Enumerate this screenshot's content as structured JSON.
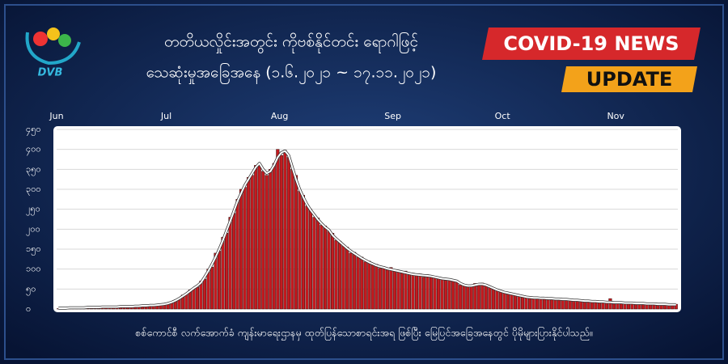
{
  "branding": {
    "logo": "DVB",
    "badge": [
      "COVID-19 NEWS",
      "UPDATE"
    ]
  },
  "chart_data": {
    "type": "bar",
    "title": "တတိယလှိုင်းအတွင်း ကိုဗစ်နိုင်တင်း ရောဂါဖြင့်",
    "subtitle": "သေဆုံးမှုအခြေအနေ (၁.၆.၂၀၂၁ ~ ၁၇.၁၁.၂၀၂၁)",
    "note": "စစ်ကောင်စီ လက်အောက်ခံ ကျန်းမာရေးဌာနမှ ထုတ်ပြန်သောစာရင်းအရ ဖြစ်ပြီး မြေပြင်အခြေအနေတွင် ပိုမိုများပြားနိုင်ပါသည်။",
    "categories": [
      "Jun",
      null,
      null,
      null,
      null,
      null,
      null,
      null,
      null,
      null,
      null,
      null,
      null,
      null,
      null,
      null,
      null,
      null,
      null,
      null,
      null,
      null,
      null,
      null,
      null,
      null,
      null,
      null,
      null,
      null,
      "Jul",
      null,
      null,
      null,
      null,
      null,
      null,
      null,
      null,
      null,
      null,
      null,
      null,
      null,
      null,
      null,
      null,
      null,
      null,
      null,
      null,
      null,
      null,
      null,
      null,
      null,
      null,
      null,
      null,
      null,
      null,
      "Aug",
      null,
      null,
      null,
      null,
      null,
      null,
      null,
      null,
      null,
      null,
      null,
      null,
      null,
      null,
      null,
      null,
      null,
      null,
      null,
      null,
      null,
      null,
      null,
      null,
      null,
      null,
      null,
      null,
      null,
      null,
      "Sep",
      null,
      null,
      null,
      null,
      null,
      null,
      null,
      null,
      null,
      null,
      null,
      null,
      null,
      null,
      null,
      null,
      null,
      null,
      null,
      null,
      null,
      null,
      null,
      null,
      null,
      null,
      null,
      null,
      null,
      "Oct",
      null,
      null,
      null,
      null,
      null,
      null,
      null,
      null,
      null,
      null,
      null,
      null,
      null,
      null,
      null,
      null,
      null,
      null,
      null,
      null,
      null,
      null,
      null,
      null,
      null,
      null,
      null,
      null,
      null,
      null,
      "Nov",
      null,
      null,
      null,
      null,
      null,
      null,
      null,
      null,
      null,
      null,
      null,
      null,
      null,
      null,
      null,
      null
    ],
    "series": [
      {
        "type": "bar",
        "color": "#c41a1f",
        "values": [
          1,
          3,
          2,
          4,
          2,
          3,
          5,
          2,
          4,
          6,
          3,
          4,
          6,
          5,
          4,
          7,
          5,
          6,
          8,
          5,
          7,
          6,
          9,
          7,
          10,
          8,
          11,
          9,
          12,
          14,
          12,
          18,
          20,
          24,
          35,
          36,
          48,
          50,
          55,
          70,
          75,
          100,
          105,
          140,
          145,
          180,
          190,
          230,
          240,
          275,
          300,
          305,
          330,
          335,
          360,
          362,
          345,
          335,
          350,
          365,
          400,
          385,
          398,
          380,
          350,
          335,
          295,
          285,
          258,
          250,
          230,
          228,
          210,
          208,
          195,
          190,
          172,
          170,
          158,
          155,
          140,
          142,
          130,
          130,
          118,
          120,
          110,
          112,
          102,
          106,
          98,
          104,
          95,
          97,
          90,
          95,
          86,
          90,
          84,
          88,
          80,
          86,
          79,
          82,
          76,
          78,
          72,
          75,
          70,
          68,
          60,
          62,
          55,
          60,
          64,
          60,
          65,
          58,
          55,
          50,
          46,
          47,
          40,
          42,
          36,
          38,
          33,
          34,
          29,
          31,
          26,
          30,
          25,
          29,
          24,
          28,
          23,
          27,
          22,
          26,
          21,
          24,
          20,
          23,
          19,
          22,
          18,
          20,
          17,
          19,
          16,
          26,
          15,
          17,
          15,
          16,
          14,
          16,
          13,
          15,
          13,
          14,
          12,
          14,
          11,
          13,
          11,
          12,
          10,
          12
        ]
      },
      {
        "type": "line",
        "color": "#ffffff",
        "values": [
          2,
          2,
          2,
          3,
          3,
          3,
          3,
          3,
          4,
          4,
          4,
          4,
          5,
          5,
          5,
          5,
          5,
          6,
          6,
          6,
          6,
          7,
          7,
          8,
          8,
          9,
          9,
          10,
          11,
          12,
          14,
          17,
          21,
          26,
          32,
          38,
          45,
          52,
          58,
          66,
          80,
          95,
          112,
          130,
          150,
          172,
          196,
          220,
          245,
          270,
          290,
          310,
          325,
          340,
          355,
          365,
          350,
          340,
          345,
          360,
          380,
          392,
          396,
          385,
          355,
          325,
          300,
          280,
          262,
          248,
          236,
          224,
          214,
          205,
          198,
          185,
          176,
          168,
          160,
          152,
          145,
          139,
          133,
          127,
          122,
          117,
          113,
          109,
          106,
          104,
          101,
          99,
          97,
          95,
          93,
          91,
          89,
          87,
          86,
          85,
          84,
          83,
          82,
          80,
          78,
          76,
          75,
          74,
          72,
          70,
          64,
          60,
          58,
          58,
          60,
          62,
          62,
          60,
          56,
          52,
          48,
          45,
          42,
          40,
          38,
          36,
          34,
          32,
          30,
          29,
          28,
          28,
          27,
          27,
          26,
          26,
          25,
          25,
          24,
          24,
          23,
          22,
          22,
          21,
          20,
          20,
          19,
          19,
          18,
          18,
          17,
          17,
          16,
          16,
          16,
          15,
          15,
          15,
          14,
          14,
          14,
          13,
          13,
          13,
          12,
          12,
          12,
          11,
          11,
          11
        ]
      }
    ],
    "ylim": [
      0,
      450
    ],
    "yticks": [
      {
        "value": 0,
        "label": "၀"
      },
      {
        "value": 50,
        "label": "၅၀"
      },
      {
        "value": 100,
        "label": "၁၀၀"
      },
      {
        "value": 150,
        "label": "၁၅၀"
      },
      {
        "value": 200,
        "label": "၂၀၀"
      },
      {
        "value": 250,
        "label": "၂၅၀"
      },
      {
        "value": 300,
        "label": "၃၀၀"
      },
      {
        "value": 350,
        "label": "၃၅၀"
      },
      {
        "value": 400,
        "label": "၄၀၀"
      },
      {
        "value": 450,
        "label": "၄၅၀"
      }
    ],
    "grid": true
  }
}
